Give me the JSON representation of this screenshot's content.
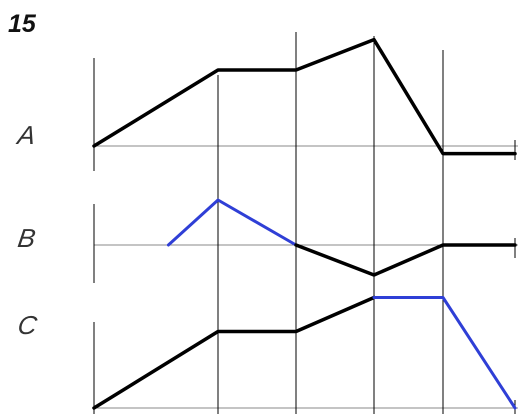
{
  "figure_number": "15",
  "rows": [
    {
      "key": "a",
      "label": "A",
      "segments": [
        {
          "color": "black",
          "points": [
            [
              0,
              0
            ],
            [
              1,
              1
            ],
            [
              2,
              1
            ],
            [
              3,
              1.4
            ],
            [
              4,
              -0.1
            ],
            [
              5,
              -0.1
            ]
          ]
        }
      ]
    },
    {
      "key": "b",
      "label": "B",
      "segments": [
        {
          "color": "blue",
          "points": [
            [
              0.6,
              0
            ],
            [
              1,
              0.6
            ],
            [
              2,
              0
            ]
          ]
        },
        {
          "color": "black",
          "points": [
            [
              2,
              0
            ],
            [
              3,
              -0.4
            ],
            [
              4,
              0
            ],
            [
              5,
              0
            ]
          ]
        }
      ]
    },
    {
      "key": "c",
      "label": "C",
      "segments": [
        {
          "color": "black",
          "points": [
            [
              0,
              0
            ],
            [
              1,
              0.9
            ],
            [
              2,
              0.9
            ],
            [
              3,
              1.3
            ]
          ]
        },
        {
          "color": "blue",
          "points": [
            [
              3,
              1.3
            ],
            [
              4,
              1.3
            ],
            [
              5,
              0
            ]
          ]
        }
      ]
    }
  ],
  "colors": {
    "black_line": "#000000",
    "blue_line": "#2f3fd6",
    "axis_line": "#8a8a8a",
    "divider_line": "#000000"
  }
}
